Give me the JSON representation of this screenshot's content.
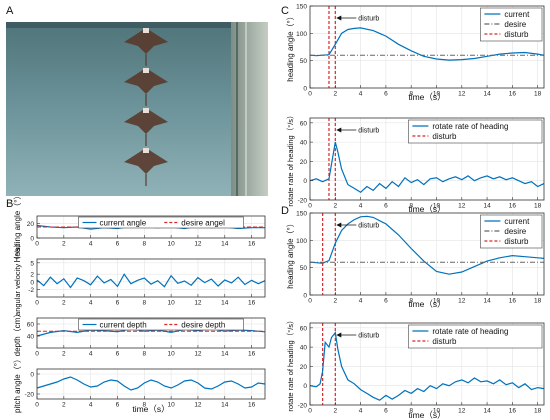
{
  "panel_labels": {
    "a": "A",
    "b": "B",
    "c": "C",
    "d": "D"
  },
  "photo": {
    "description_icon": "manta-robot-icon",
    "frames": 4,
    "colors": {
      "water_top": "#5b7f86",
      "water_bottom": "#7ea3ab",
      "robot": "#5a3a2c",
      "wall": "#a9b4ad"
    }
  },
  "colors": {
    "blue": "#0072bd",
    "red": "#d62728",
    "gray": "#666666",
    "grid": "#e4e4e4",
    "axis": "#333333"
  },
  "chart_data": [
    {
      "id": "b1",
      "type": "line",
      "ylabel": "Heading angle（°）",
      "xlim": [
        0,
        17
      ],
      "ylim": [
        0,
        30
      ],
      "yticks": [
        0,
        20
      ],
      "xticks": [
        0,
        2,
        4,
        6,
        8,
        10,
        12,
        14,
        16
      ],
      "legend": [
        "current angle",
        "desire angel"
      ],
      "legend_position": "top-center",
      "series": [
        {
          "name": "current angle",
          "color": "#0072bd",
          "style": "solid",
          "x": [
            0,
            1,
            2,
            3,
            4,
            5,
            6,
            7,
            8,
            9,
            10,
            11,
            12,
            13,
            14,
            15,
            16,
            17
          ],
          "y": [
            17,
            15,
            14,
            15,
            12,
            14,
            13,
            16,
            15,
            14,
            15,
            13,
            16,
            14,
            15,
            13,
            14,
            14
          ]
        },
        {
          "name": "desire angel",
          "color": "#d62728",
          "style": "dashed",
          "x": [
            0,
            17
          ],
          "y": [
            15,
            15
          ]
        }
      ]
    },
    {
      "id": "b2",
      "type": "line",
      "ylabel": "angular velocity（°/s）",
      "xlim": [
        0,
        17
      ],
      "ylim": [
        -4,
        6
      ],
      "yticks": [
        -2,
        0,
        2,
        5
      ],
      "xticks": [
        0,
        2,
        4,
        6,
        8,
        10,
        12,
        14,
        16
      ],
      "series": [
        {
          "name": "",
          "color": "#0072bd",
          "style": "solid",
          "x": [
            0,
            0.5,
            1,
            1.5,
            2,
            2.5,
            3,
            3.5,
            4,
            4.5,
            5,
            5.5,
            6,
            6.5,
            7,
            7.5,
            8,
            8.5,
            9,
            9.5,
            10,
            10.5,
            11,
            11.5,
            12,
            12.5,
            13,
            13.5,
            14,
            14.5,
            15,
            15.5,
            16,
            16.5,
            17
          ],
          "y": [
            0.5,
            -1,
            1.2,
            -0.5,
            0.8,
            -1.5,
            1,
            0.3,
            -0.8,
            1.5,
            -0.3,
            0.6,
            -1.2,
            2,
            -0.5,
            0.4,
            1,
            -0.6,
            0.3,
            -1.3,
            1.6,
            -0.4,
            0.2,
            -0.9,
            1.1,
            -0.2,
            0.7,
            -1.1,
            0.5,
            -0.3,
            1.2,
            -0.7,
            0.4,
            -0.5,
            0.3
          ]
        }
      ]
    },
    {
      "id": "b3",
      "type": "line",
      "ylabel": "depth（cm）",
      "xlim": [
        0,
        17
      ],
      "ylim": [
        20,
        70
      ],
      "yticks": [
        40,
        60
      ],
      "xticks": [
        0,
        2,
        4,
        6,
        8,
        10,
        12,
        14,
        16
      ],
      "legend": [
        "current depth",
        "desire depth"
      ],
      "legend_position": "top-center",
      "series": [
        {
          "name": "current depth",
          "color": "#0072bd",
          "style": "solid",
          "x": [
            0,
            1,
            2,
            3,
            4,
            5,
            6,
            7,
            8,
            9,
            10,
            11,
            12,
            13,
            14,
            15,
            16,
            17
          ],
          "y": [
            40,
            46,
            49,
            46,
            50,
            49,
            47,
            52,
            48,
            50,
            46,
            51,
            49,
            52,
            48,
            50,
            49,
            47
          ]
        },
        {
          "name": "desire depth",
          "color": "#d62728",
          "style": "dashed",
          "x": [
            0,
            17
          ],
          "y": [
            48,
            48
          ]
        }
      ]
    },
    {
      "id": "b4",
      "type": "line",
      "ylabel": "pitch angle（°）",
      "xlabel": "time（s）",
      "xlim": [
        0,
        17
      ],
      "ylim": [
        -25,
        5
      ],
      "yticks": [
        -20,
        0
      ],
      "xticks": [
        0,
        2,
        4,
        6,
        8,
        10,
        12,
        14,
        16
      ],
      "series": [
        {
          "name": "",
          "color": "#0072bd",
          "style": "solid",
          "x": [
            0,
            0.5,
            1,
            1.5,
            2,
            2.5,
            3,
            3.5,
            4,
            4.5,
            5,
            5.5,
            6,
            6.5,
            7,
            7.5,
            8,
            8.5,
            9,
            9.5,
            10,
            10.5,
            11,
            11.5,
            12,
            12.5,
            13,
            13.5,
            14,
            14.5,
            15,
            15.5,
            16,
            16.5,
            17
          ],
          "y": [
            -14,
            -12,
            -10,
            -8,
            -5,
            -3,
            -6,
            -10,
            -13,
            -12,
            -8,
            -6,
            -7,
            -12,
            -16,
            -14,
            -9,
            -6,
            -8,
            -12,
            -14,
            -11,
            -7,
            -6,
            -9,
            -14,
            -15,
            -12,
            -8,
            -7,
            -10,
            -14,
            -13,
            -9,
            -10
          ]
        }
      ]
    },
    {
      "id": "c1",
      "type": "line",
      "ylabel": "heading angle（°）",
      "xlabel": "time（s）",
      "xlim": [
        0,
        18.5
      ],
      "ylim": [
        0,
        150
      ],
      "yticks": [
        0,
        50,
        100,
        150
      ],
      "xticks": [
        0,
        2,
        4,
        6,
        8,
        10,
        12,
        14,
        16,
        18
      ],
      "legend": [
        "current",
        "desire",
        "disturb"
      ],
      "legend_position": "top-right",
      "annotation": "disturb",
      "disturb_x": [
        1.5,
        2.0
      ],
      "series": [
        {
          "name": "current",
          "color": "#0072bd",
          "style": "solid",
          "x": [
            0,
            0.5,
            1,
            1.5,
            2,
            2.5,
            3,
            3.5,
            4,
            5,
            6,
            7,
            8,
            9,
            10,
            11,
            12,
            13,
            14,
            15,
            16,
            17,
            18,
            18.5
          ],
          "y": [
            60,
            59,
            60,
            61,
            80,
            100,
            107,
            109,
            110,
            105,
            95,
            80,
            68,
            58,
            53,
            51,
            52,
            54,
            58,
            62,
            64,
            65,
            62,
            60
          ]
        },
        {
          "name": "desire",
          "color": "#666666",
          "style": "dashdot",
          "x": [
            0,
            18.5
          ],
          "y": [
            60,
            60
          ]
        }
      ]
    },
    {
      "id": "c2",
      "type": "line",
      "ylabel": "rotate rate of heading（°/s）",
      "xlabel": "time（s）",
      "xlim": [
        0,
        18.5
      ],
      "ylim": [
        -20,
        65
      ],
      "yticks": [
        -20,
        0,
        20,
        40,
        60
      ],
      "xticks": [
        0,
        2,
        4,
        6,
        8,
        10,
        12,
        14,
        16,
        18
      ],
      "legend": [
        "rotate rate of heading",
        "disturb"
      ],
      "legend_position": "top-right",
      "annotation": "disturb",
      "disturb_x": [
        1.5,
        2.0
      ],
      "series": [
        {
          "name": "rotate rate of heading",
          "color": "#0072bd",
          "style": "solid",
          "x": [
            0,
            0.5,
            1,
            1.5,
            1.8,
            2,
            2.2,
            2.5,
            3,
            3.5,
            4,
            4.5,
            5,
            5.5,
            6,
            6.5,
            7,
            7.5,
            8,
            8.5,
            9,
            9.5,
            10,
            10.5,
            11,
            11.5,
            12,
            12.5,
            13,
            13.5,
            14,
            14.5,
            15,
            15.5,
            16,
            16.5,
            17,
            17.5,
            18,
            18.5
          ],
          "y": [
            0,
            2,
            -1,
            2,
            25,
            40,
            30,
            12,
            -4,
            -8,
            -12,
            -6,
            -10,
            -3,
            -8,
            -1,
            -6,
            3,
            -2,
            1,
            -4,
            2,
            3,
            -1,
            2,
            4,
            1,
            5,
            0,
            3,
            5,
            2,
            4,
            1,
            3,
            0,
            -3,
            -1,
            -6,
            -3
          ]
        }
      ]
    },
    {
      "id": "d1",
      "type": "line",
      "ylabel": "heading angle（°）",
      "xlabel": "time（s）",
      "xlim": [
        0,
        18.5
      ],
      "ylim": [
        0,
        150
      ],
      "yticks": [
        0,
        50,
        100,
        150
      ],
      "xticks": [
        0,
        2,
        4,
        6,
        8,
        10,
        12,
        14,
        16,
        18
      ],
      "legend": [
        "current",
        "desire",
        "disturb"
      ],
      "legend_position": "top-right",
      "annotation": "disturb",
      "disturb_x": [
        1.0,
        2.0
      ],
      "series": [
        {
          "name": "current",
          "color": "#0072bd",
          "style": "solid",
          "x": [
            0,
            0.5,
            1,
            1.5,
            2,
            2.5,
            3,
            3.5,
            4,
            4.5,
            5,
            6,
            7,
            8,
            9,
            10,
            11,
            12,
            13,
            14,
            15,
            16,
            17,
            18,
            18.5
          ],
          "y": [
            60,
            59,
            58,
            63,
            95,
            118,
            130,
            138,
            143,
            144,
            142,
            130,
            110,
            85,
            62,
            43,
            38,
            42,
            52,
            62,
            68,
            72,
            70,
            68,
            67
          ]
        },
        {
          "name": "desire",
          "color": "#666666",
          "style": "dashdot",
          "x": [
            0,
            18.5
          ],
          "y": [
            60,
            60
          ]
        }
      ]
    },
    {
      "id": "d2",
      "type": "line",
      "ylabel": "rotate rate of heading（°/s）",
      "xlabel": "time（s）",
      "xlim": [
        0,
        18.5
      ],
      "ylim": [
        -20,
        65
      ],
      "yticks": [
        -20,
        0,
        20,
        40,
        60
      ],
      "xticks": [
        0,
        2,
        4,
        6,
        8,
        10,
        12,
        14,
        16,
        18
      ],
      "legend": [
        "rotate rate of heading",
        "disturb"
      ],
      "legend_position": "top-right",
      "annotation": "disturb",
      "disturb_x": [
        1.0,
        2.0
      ],
      "series": [
        {
          "name": "rotate rate of heading",
          "color": "#0072bd",
          "style": "solid",
          "x": [
            0,
            0.5,
            0.8,
            1,
            1.2,
            1.5,
            1.7,
            2,
            2.2,
            2.5,
            3,
            3.5,
            4,
            4.5,
            5,
            5.5,
            6,
            6.5,
            7,
            7.5,
            8,
            8.5,
            9,
            9.5,
            10,
            10.5,
            11,
            11.5,
            12,
            12.5,
            13,
            13.5,
            14,
            14.5,
            15,
            15.5,
            16,
            16.5,
            17,
            17.5,
            18,
            18.5
          ],
          "y": [
            0,
            -1,
            2,
            15,
            45,
            40,
            50,
            55,
            38,
            20,
            6,
            2,
            -4,
            -8,
            -12,
            -15,
            -10,
            -14,
            -10,
            -5,
            -8,
            -3,
            -6,
            0,
            -3,
            2,
            0,
            4,
            6,
            3,
            8,
            4,
            5,
            2,
            6,
            1,
            3,
            -2,
            2,
            -4,
            -2,
            -3
          ]
        }
      ]
    }
  ]
}
